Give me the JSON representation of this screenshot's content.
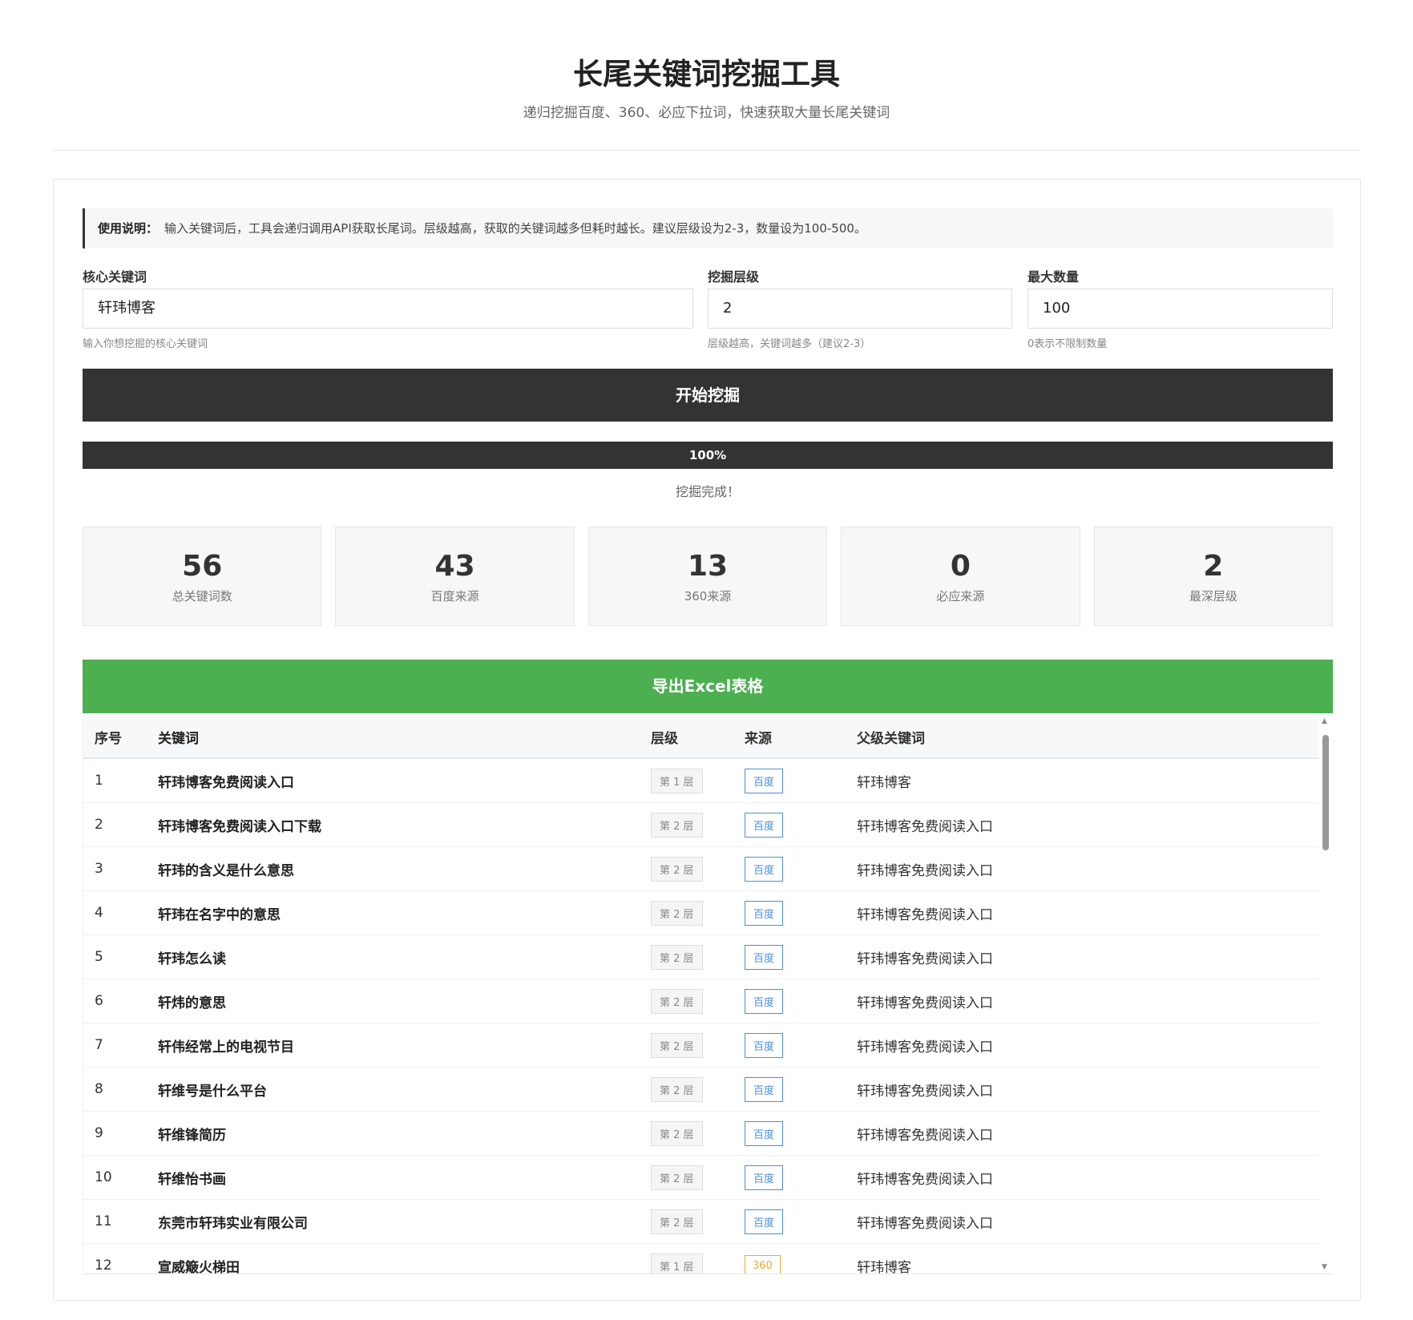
{
  "header": {
    "title": "长尾关键词挖掘工具",
    "subtitle": "递归挖掘百度、360、必应下拉词，快速获取大量长尾关键词"
  },
  "notice": {
    "label": "使用说明：",
    "text": "输入关键词后，工具会递归调用API获取长尾词。层级越高，获取的关键词越多但耗时越长。建议层级设为2-3，数量设为100-500。"
  },
  "form": {
    "keyword": {
      "label": "核心关键词",
      "value": "轩玮博客",
      "hint": "输入你想挖掘的核心关键词"
    },
    "depth": {
      "label": "挖掘层级",
      "value": "2",
      "hint": "层级越高，关键词越多（建议2-3）"
    },
    "max": {
      "label": "最大数量",
      "value": "100",
      "hint": "0表示不限制数量"
    },
    "start_label": "开始挖掘"
  },
  "progress": {
    "percent": 100,
    "label": "100%",
    "status": "挖掘完成！"
  },
  "stats": [
    {
      "value": "56",
      "label": "总关键词数"
    },
    {
      "value": "43",
      "label": "百度来源"
    },
    {
      "value": "13",
      "label": "360来源"
    },
    {
      "value": "0",
      "label": "必应来源"
    },
    {
      "value": "2",
      "label": "最深层级"
    }
  ],
  "export_label": "导出Excel表格",
  "colors": {
    "primary": "#333333",
    "export": "#4caf50",
    "baidu": "#4a90d9",
    "s360": "#f0a830"
  },
  "table": {
    "headers": [
      "序号",
      "关键词",
      "层级",
      "来源",
      "父级关键词"
    ],
    "rows": [
      {
        "n": "1",
        "kw": "轩玮博客免费阅读入口",
        "lvl": "第 1 层",
        "src": "百度",
        "parent": "轩玮博客"
      },
      {
        "n": "2",
        "kw": "轩玮博客免费阅读入口下载",
        "lvl": "第 2 层",
        "src": "百度",
        "parent": "轩玮博客免费阅读入口"
      },
      {
        "n": "3",
        "kw": "轩玮的含义是什么意思",
        "lvl": "第 2 层",
        "src": "百度",
        "parent": "轩玮博客免费阅读入口"
      },
      {
        "n": "4",
        "kw": "轩玮在名字中的意思",
        "lvl": "第 2 层",
        "src": "百度",
        "parent": "轩玮博客免费阅读入口"
      },
      {
        "n": "5",
        "kw": "轩玮怎么读",
        "lvl": "第 2 层",
        "src": "百度",
        "parent": "轩玮博客免费阅读入口"
      },
      {
        "n": "6",
        "kw": "轩炜的意思",
        "lvl": "第 2 层",
        "src": "百度",
        "parent": "轩玮博客免费阅读入口"
      },
      {
        "n": "7",
        "kw": "轩伟经常上的电视节目",
        "lvl": "第 2 层",
        "src": "百度",
        "parent": "轩玮博客免费阅读入口"
      },
      {
        "n": "8",
        "kw": "轩维号是什么平台",
        "lvl": "第 2 层",
        "src": "百度",
        "parent": "轩玮博客免费阅读入口"
      },
      {
        "n": "9",
        "kw": "轩维锋简历",
        "lvl": "第 2 层",
        "src": "百度",
        "parent": "轩玮博客免费阅读入口"
      },
      {
        "n": "10",
        "kw": "轩维怡书画",
        "lvl": "第 2 层",
        "src": "百度",
        "parent": "轩玮博客免费阅读入口"
      },
      {
        "n": "11",
        "kw": "东莞市轩玮实业有限公司",
        "lvl": "第 2 层",
        "src": "百度",
        "parent": "轩玮博客免费阅读入口"
      },
      {
        "n": "12",
        "kw": "宣威簸火梯田",
        "lvl": "第 1 层",
        "src": "360",
        "parent": "轩玮博客"
      }
    ]
  }
}
